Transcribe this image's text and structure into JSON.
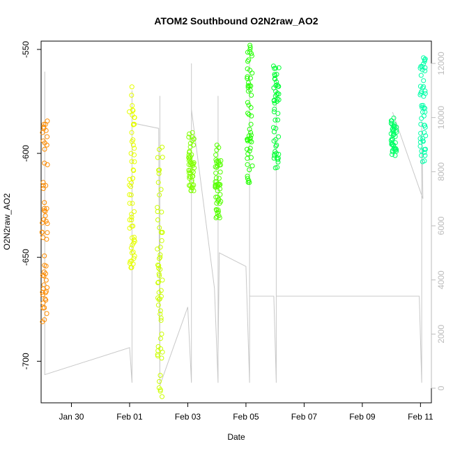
{
  "chart_data": {
    "type": "scatter",
    "title": "ATOM2 Southbound O2N2raw_AO2",
    "xlabel": "Date",
    "ylabel": "O2N2raw_AO2",
    "x_ticks": [
      "Jan 30",
      "Feb 01",
      "Feb 03",
      "Feb 05",
      "Feb 07",
      "Feb 09",
      "Feb 11"
    ],
    "y_ticks": [
      "-550",
      "-600",
      "-650",
      "-700"
    ],
    "y2_ticks": [
      "0",
      "2000",
      "4000",
      "6000",
      "8000",
      "10000",
      "12000"
    ],
    "xlim": [
      "2012-01-28T23:00",
      "2012-02-11T09:00"
    ],
    "ylim": [
      -720,
      -546
    ],
    "y2lim": [
      0,
      12000
    ],
    "grid": false,
    "colors": {
      "axis": "#000000",
      "secondary_axis": "#bbbbbb",
      "line": "#c8c8c8"
    },
    "series": [
      {
        "color": "#ff8c00",
        "x_center": "2012-01-29T02:00",
        "y_min": -682,
        "y_max": -583,
        "values": [
          -586,
          -588,
          -590,
          -592,
          -594,
          -596,
          -598,
          -614,
          -630,
          -657,
          -661,
          -667,
          -668,
          -672,
          -680,
          -681
        ]
      },
      {
        "color": "#e6ff00",
        "x_center": "2012-02-01T02:00",
        "y_min": -655,
        "y_max": -568,
        "values": [
          -568,
          -572,
          -580,
          -586,
          -590,
          -596,
          -600,
          -604,
          -608,
          -612,
          -616,
          -620,
          -624,
          -628,
          -632,
          -636,
          -652,
          -655
        ]
      },
      {
        "color": "#ccff00",
        "x_center": "2012-02-02T01:00",
        "y_min": -717,
        "y_max": -597,
        "values": [
          -597,
          -602,
          -608,
          -614,
          -620,
          -626,
          -632,
          -638,
          -642,
          -646,
          -650,
          -654,
          -658,
          -662,
          -666,
          -670,
          -673,
          -694,
          -717
        ]
      },
      {
        "color": "#80ff00",
        "x_center": "2012-02-03T03:00",
        "y_min": -618,
        "y_max": -590,
        "values": [
          -590,
          -593,
          -596,
          -599,
          -602,
          -605,
          -607,
          -609,
          -611,
          -613,
          -618
        ]
      },
      {
        "color": "#55ff00",
        "x_center": "2012-02-04T01:00",
        "y_min": -631,
        "y_max": -596,
        "values": [
          -596,
          -606,
          -609,
          -612,
          -615,
          -618,
          -621,
          -624,
          -627,
          -631
        ]
      },
      {
        "color": "#22ff00",
        "x_center": "2012-02-05T03:00",
        "y_min": -614,
        "y_max": -548,
        "values": [
          -548,
          -552,
          -560,
          -566,
          -572,
          -578,
          -582,
          -586,
          -590,
          -594,
          -598,
          -602,
          -606,
          -611,
          -614
        ]
      },
      {
        "color": "#00ff33",
        "x_center": "2012-02-06T01:00",
        "y_min": -607,
        "y_max": -558,
        "values": [
          -558,
          -562,
          -575,
          -580,
          -584,
          -588,
          -592,
          -596,
          -600,
          -603,
          -607
        ]
      },
      {
        "color": "#00ff66",
        "x_center": "2012-02-10T02:00",
        "y_min": -601,
        "y_max": -583,
        "values": [
          -583,
          -589,
          -596,
          -599,
          -601
        ]
      },
      {
        "color": "#00ffa8",
        "x_center": "2012-02-11T02:00",
        "y_min": -604,
        "y_max": -554,
        "values": [
          -554,
          -559,
          -565,
          -571,
          -577,
          -582,
          -586,
          -590,
          -594,
          -598,
          -601,
          -604
        ]
      }
    ],
    "secondary_line": {
      "name": "",
      "points": [
        [
          "2012-01-29T02:00",
          1000
        ],
        [
          "2012-01-29T02:00",
          11700
        ],
        [
          "2012-01-29T02:00",
          500
        ],
        [
          "2012-02-01T00:00",
          1500
        ],
        [
          "2012-02-01T02:00",
          200
        ],
        [
          "2012-02-01T02:00",
          11000
        ],
        [
          "2012-02-01T02:00",
          200
        ],
        [
          "2012-02-01T02:00",
          10000
        ],
        [
          "2012-02-01T02:00",
          1300
        ],
        [
          "2012-02-01T02:00",
          9800
        ],
        [
          "2012-02-02T00:00",
          9600
        ],
        [
          "2012-02-02T01:00",
          100
        ],
        [
          "2012-02-02T01:00",
          10200
        ],
        [
          "2012-02-02T01:00",
          200
        ],
        [
          "2012-02-02T01:00",
          10800
        ],
        [
          "2012-02-02T01:00",
          100
        ],
        [
          "2012-02-03T00:00",
          3000
        ],
        [
          "2012-02-03T03:00",
          200
        ],
        [
          "2012-02-03T03:00",
          12000
        ],
        [
          "2012-02-03T03:00",
          300
        ],
        [
          "2012-02-03T03:00",
          12000
        ],
        [
          "2012-02-03T03:00",
          10300
        ],
        [
          "2012-02-03T22:00",
          3700
        ],
        [
          "2012-02-04T01:00",
          200
        ],
        [
          "2012-02-04T01:00",
          10000
        ],
        [
          "2012-02-04T01:00",
          300
        ],
        [
          "2012-02-04T01:00",
          10800
        ],
        [
          "2012-02-04T01:00",
          400
        ],
        [
          "2012-02-04T01:00",
          10800
        ],
        [
          "2012-02-04T01:00",
          1300
        ],
        [
          "2012-02-04T02:00",
          5000
        ],
        [
          "2012-02-05T00:00",
          4500
        ],
        [
          "2012-02-05T03:00",
          200
        ],
        [
          "2012-02-05T03:00",
          12100
        ],
        [
          "2012-02-05T03:00",
          200
        ],
        [
          "2012-02-05T03:00",
          11900
        ],
        [
          "2012-02-05T03:00",
          200
        ],
        [
          "2012-02-05T03:00",
          3400
        ],
        [
          "2012-02-05T23:00",
          3400
        ],
        [
          "2012-02-06T01:00",
          200
        ],
        [
          "2012-02-06T01:00",
          11400
        ],
        [
          "2012-02-06T01:00",
          200
        ],
        [
          "2012-02-06T01:00",
          11700
        ],
        [
          "2012-02-06T01:00",
          200
        ],
        [
          "2012-02-06T01:00",
          3400
        ],
        [
          "2012-02-10T23:00",
          3400
        ],
        [
          "2012-02-11T01:00",
          200
        ],
        [
          "2012-02-11T01:00",
          9000
        ],
        [
          "2012-02-11T01:00",
          200
        ],
        [
          "2012-02-11T01:00",
          9900
        ],
        [
          "2012-02-11T02:00",
          7000
        ],
        [
          "2012-02-10T01:00",
          10200
        ]
      ]
    }
  }
}
